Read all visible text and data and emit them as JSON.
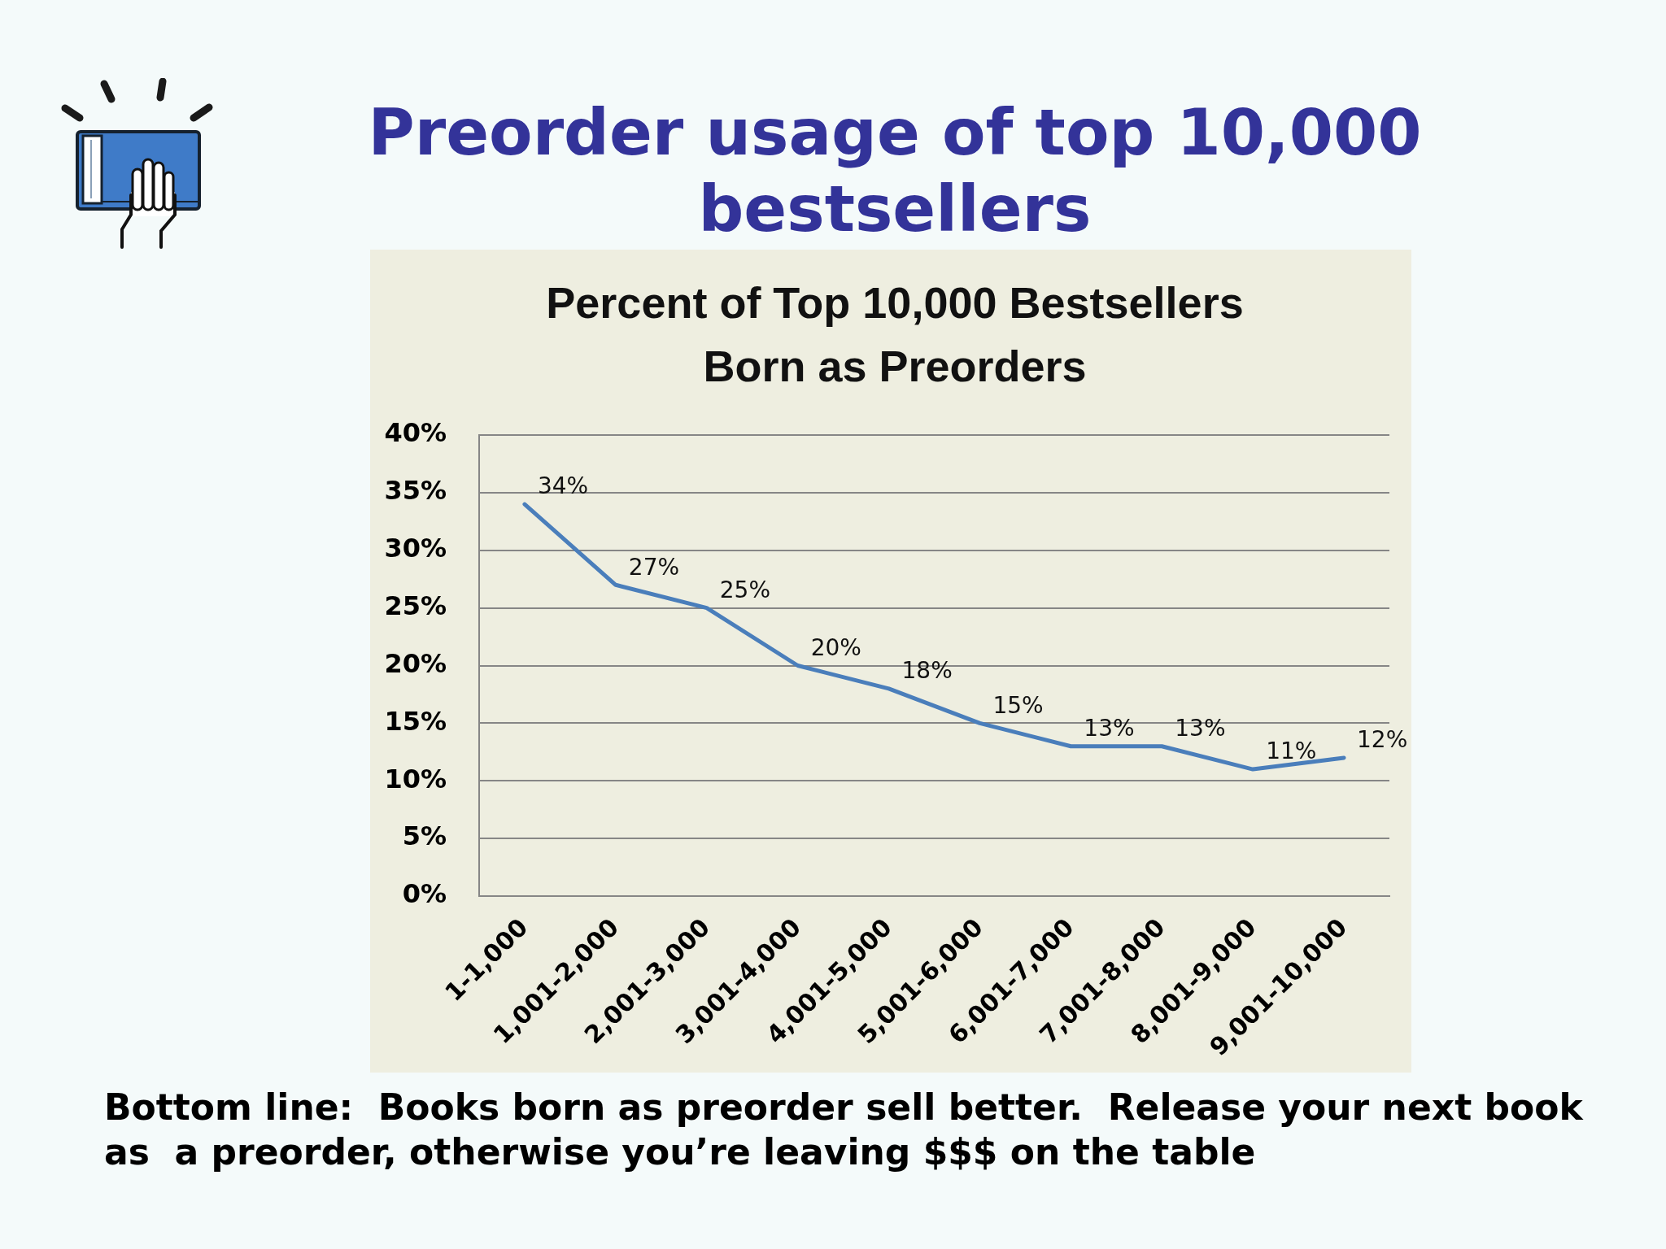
{
  "chart_data": {
    "type": "line",
    "title": "Preorder usage of top 10,000 bestsellers",
    "subtitle": "Percent of Top 10,000 Bestsellers Born as Preorders",
    "categories": [
      "1-1,000",
      "1,001-2,000",
      "2,001-3,000",
      "3,001-4,000",
      "4,001-5,000",
      "5,001-6,000",
      "6,001-7,000",
      "7,001-8,000",
      "8,001-9,000",
      "9,001-10,000"
    ],
    "values": [
      34,
      27,
      25,
      20,
      18,
      15,
      13,
      13,
      11,
      12
    ],
    "color": "#4a7ebb",
    "value_labels": [
      "34%",
      "27%",
      "25%",
      "20%",
      "18%",
      "15%",
      "13%",
      "13%",
      "11%",
      "12%"
    ],
    "ylim": [
      0,
      40
    ],
    "yticks": [
      {
        "value": 0,
        "label": "0%"
      },
      {
        "value": 5,
        "label": "5%"
      },
      {
        "value": 10,
        "label": "10%"
      },
      {
        "value": 15,
        "label": "15%"
      },
      {
        "value": 20,
        "label": "20%"
      },
      {
        "value": 25,
        "label": "25%"
      },
      {
        "value": 30,
        "label": "30%"
      },
      {
        "value": 35,
        "label": "35%"
      },
      {
        "value": 40,
        "label": "40%"
      }
    ],
    "grid": "y",
    "marker": "none",
    "line_style": "solid",
    "annotations": [
      "Bottom line:  Books born as preorder sell better.  Release your next book as  a preorder, otherwise you’re leaving $$$ on the table"
    ]
  }
}
